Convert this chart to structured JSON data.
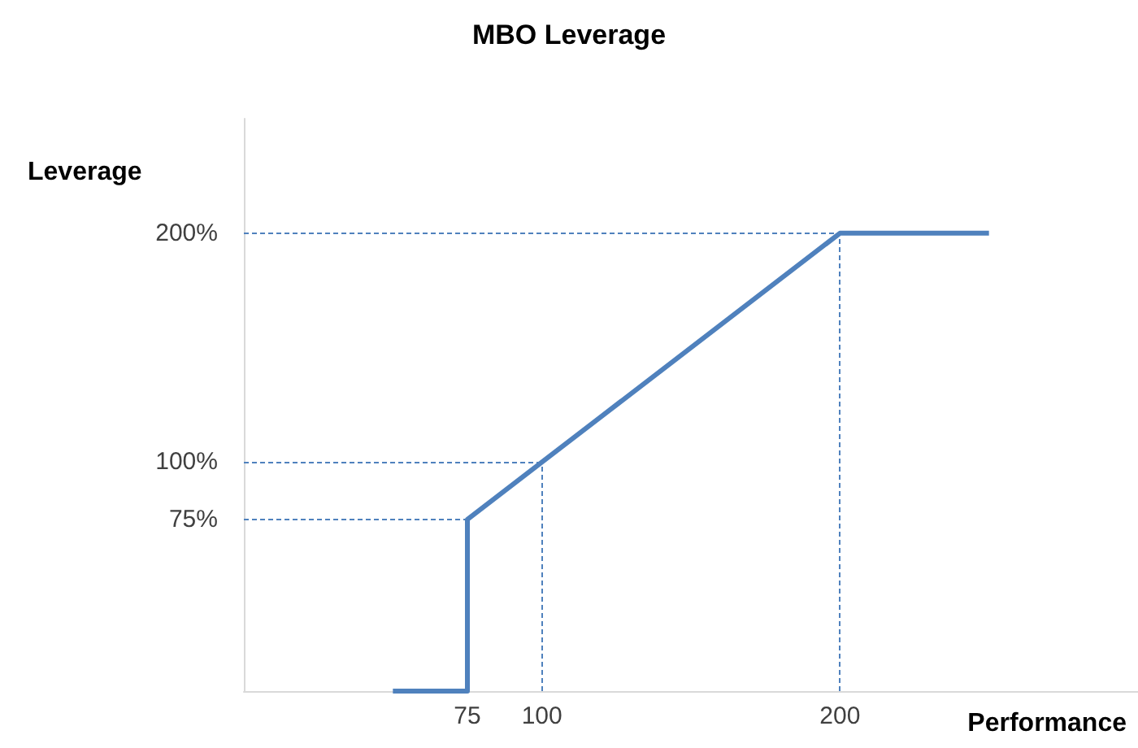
{
  "chart_data": {
    "type": "line",
    "title": "MBO Leverage",
    "xlabel": "Performance",
    "ylabel": "Leverage",
    "x": [
      50,
      75,
      75,
      100,
      200,
      250
    ],
    "series": [
      {
        "color": "#4f81bd",
        "values": [
          0,
          0,
          75,
          100,
          200,
          200
        ]
      }
    ],
    "xlim": [
      0,
      300
    ],
    "xticks": [
      75,
      100,
      200
    ],
    "ylim": [
      0,
      250
    ],
    "yticks": [
      {
        "value": 75,
        "label": "75%"
      },
      {
        "value": 100,
        "label": "100%"
      },
      {
        "value": 200,
        "label": "200%"
      }
    ],
    "ref_lines": [
      {
        "axis": "y",
        "value": 200,
        "color": "#4f81bd",
        "line_style": "dashed"
      },
      {
        "axis": "y",
        "value": 100,
        "color": "#4f81bd",
        "line_style": "dashed"
      },
      {
        "axis": "y",
        "value": 75,
        "color": "#4f81bd",
        "line_style": "dashed"
      },
      {
        "axis": "x",
        "value": 100,
        "color": "#4f81bd",
        "line_style": "dashed"
      },
      {
        "axis": "x",
        "value": 200,
        "color": "#4f81bd",
        "line_style": "dashed"
      }
    ],
    "grid": false,
    "marker": "none",
    "line_style": "solid"
  }
}
